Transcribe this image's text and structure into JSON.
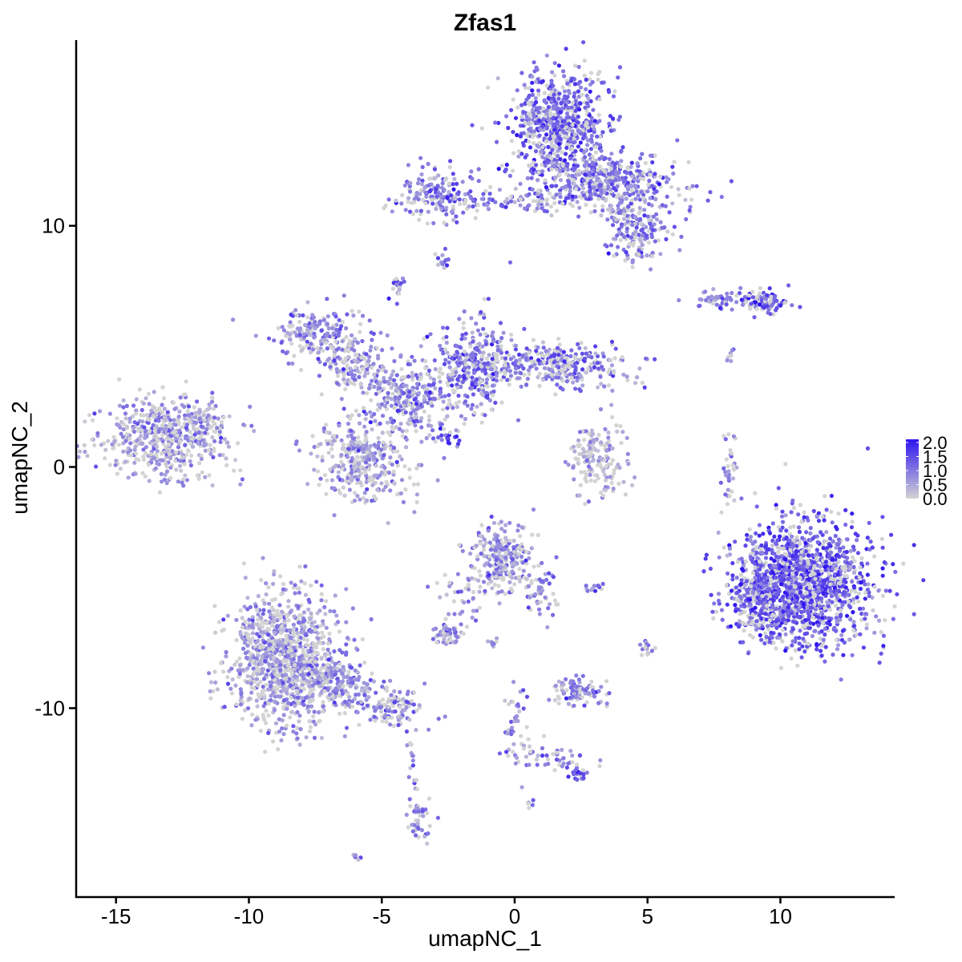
{
  "chart_data": {
    "type": "scatter",
    "title": "Zfas1",
    "xlabel": "umapNC_1",
    "ylabel": "umapNC_2",
    "xlim": [
      -16.5,
      14.3
    ],
    "ylim": [
      -17.8,
      17.7
    ],
    "x_ticks": [
      -15,
      -10,
      -5,
      0,
      5,
      10
    ],
    "x_tick_labels": [
      "-15",
      "-10",
      "-5",
      "0",
      "5",
      "10"
    ],
    "y_ticks": [
      -10,
      0,
      10
    ],
    "y_tick_labels": [
      "-10",
      "0",
      "10"
    ],
    "grid": false,
    "legend_placement": "right",
    "color_scale": {
      "low_color": "#d3d3d3",
      "high_color": "#2e14f0",
      "min": 0.0,
      "max": 2.0,
      "ticks": [
        0.0,
        0.5,
        1.0,
        1.5,
        2.0
      ],
      "tick_labels": [
        "0.0",
        "0.5",
        "1.0",
        "1.5",
        "2.0"
      ]
    },
    "clusters": [
      {
        "cx": 1.7,
        "cy": 14.2,
        "sx": 0.9,
        "sy": 1.2,
        "n": 650,
        "mean": 1.15
      },
      {
        "cx": 3.5,
        "cy": 11.8,
        "sx": 1.3,
        "sy": 0.6,
        "n": 420,
        "mean": 1.05
      },
      {
        "cx": 4.6,
        "cy": 9.8,
        "sx": 0.6,
        "sy": 0.7,
        "n": 170,
        "mean": 0.9
      },
      {
        "cx": -3.0,
        "cy": 11.3,
        "sx": 0.7,
        "sy": 0.5,
        "n": 160,
        "mean": 0.95
      },
      {
        "cx": -0.5,
        "cy": 11.0,
        "sx": 1.4,
        "sy": 0.25,
        "n": 90,
        "mean": 0.9
      },
      {
        "cx": -2.7,
        "cy": 8.6,
        "sx": 0.2,
        "sy": 0.2,
        "n": 12,
        "mean": 0.8
      },
      {
        "cx": -13.1,
        "cy": 1.2,
        "sx": 1.2,
        "sy": 0.85,
        "n": 520,
        "mean": 0.6
      },
      {
        "cx": -11.8,
        "cy": 2.1,
        "sx": 0.4,
        "sy": 0.35,
        "n": 40,
        "mean": 0.55
      },
      {
        "cx": -7.3,
        "cy": 5.4,
        "sx": 0.9,
        "sy": 0.6,
        "n": 200,
        "mean": 0.75
      },
      {
        "cx": -6.0,
        "cy": 4.0,
        "sx": 0.6,
        "sy": 0.5,
        "n": 120,
        "mean": 0.7
      },
      {
        "cx": -5.7,
        "cy": 0.3,
        "sx": 0.85,
        "sy": 0.85,
        "n": 330,
        "mean": 0.65
      },
      {
        "cx": -4.0,
        "cy": 2.8,
        "sx": 0.8,
        "sy": 0.7,
        "n": 260,
        "mean": 0.8
      },
      {
        "cx": -1.6,
        "cy": 4.2,
        "sx": 0.75,
        "sy": 1.0,
        "n": 330,
        "mean": 1.0
      },
      {
        "cx": 1.8,
        "cy": 4.2,
        "sx": 1.3,
        "sy": 0.45,
        "n": 300,
        "mean": 0.95
      },
      {
        "cx": -4.4,
        "cy": 7.4,
        "sx": 0.15,
        "sy": 0.3,
        "n": 20,
        "mean": 1.1
      },
      {
        "cx": -2.5,
        "cy": 1.3,
        "sx": 0.25,
        "sy": 0.25,
        "n": 25,
        "mean": 1.3
      },
      {
        "cx": 3.1,
        "cy": 0.3,
        "sx": 0.55,
        "sy": 0.8,
        "n": 160,
        "mean": 0.35
      },
      {
        "cx": 7.8,
        "cy": 6.9,
        "sx": 0.6,
        "sy": 0.2,
        "n": 50,
        "mean": 0.9
      },
      {
        "cx": 9.4,
        "cy": 6.8,
        "sx": 0.45,
        "sy": 0.25,
        "n": 90,
        "mean": 1.2
      },
      {
        "cx": 8.1,
        "cy": 4.6,
        "sx": 0.1,
        "sy": 0.15,
        "n": 8,
        "mean": 0.8
      },
      {
        "cx": 8.1,
        "cy": -0.3,
        "sx": 0.15,
        "sy": 0.8,
        "n": 35,
        "mean": 0.8
      },
      {
        "cx": 10.9,
        "cy": -4.8,
        "sx": 1.25,
        "sy": 1.3,
        "n": 1300,
        "mean": 1.3
      },
      {
        "cx": 9.3,
        "cy": -5.6,
        "sx": 0.6,
        "sy": 0.9,
        "n": 260,
        "mean": 1.2
      },
      {
        "cx": -0.4,
        "cy": -3.8,
        "sx": 0.55,
        "sy": 0.7,
        "n": 260,
        "mean": 0.8
      },
      {
        "cx": 0.9,
        "cy": -5.1,
        "sx": 0.3,
        "sy": 0.5,
        "n": 40,
        "mean": 0.9
      },
      {
        "cx": -1.8,
        "cy": -5.5,
        "sx": 0.5,
        "sy": 0.6,
        "n": 40,
        "mean": 0.75
      },
      {
        "cx": -2.5,
        "cy": -6.9,
        "sx": 0.3,
        "sy": 0.25,
        "n": 45,
        "mean": 0.7
      },
      {
        "cx": -8.7,
        "cy": -8.0,
        "sx": 1.0,
        "sy": 1.4,
        "n": 1000,
        "mean": 0.6
      },
      {
        "cx": -6.7,
        "cy": -9.0,
        "sx": 0.8,
        "sy": 0.5,
        "n": 200,
        "mean": 0.7
      },
      {
        "cx": -4.6,
        "cy": -10.0,
        "sx": 0.6,
        "sy": 0.35,
        "n": 110,
        "mean": 0.85
      },
      {
        "cx": -3.6,
        "cy": -14.6,
        "sx": 0.2,
        "sy": 0.6,
        "n": 45,
        "mean": 0.9
      },
      {
        "cx": -3.9,
        "cy": -12.2,
        "sx": 0.15,
        "sy": 0.7,
        "n": 15,
        "mean": 0.6
      },
      {
        "cx": 2.4,
        "cy": -9.3,
        "sx": 0.45,
        "sy": 0.3,
        "n": 100,
        "mean": 1.0
      },
      {
        "cx": 0.0,
        "cy": -10.5,
        "sx": 0.25,
        "sy": 0.9,
        "n": 45,
        "mean": 0.9
      },
      {
        "cx": 1.5,
        "cy": -12.1,
        "sx": 0.7,
        "sy": 0.25,
        "n": 45,
        "mean": 0.9
      },
      {
        "cx": 2.4,
        "cy": -12.7,
        "sx": 0.2,
        "sy": 0.15,
        "n": 20,
        "mean": 1.3
      },
      {
        "cx": 3.0,
        "cy": -5.0,
        "sx": 0.2,
        "sy": 0.1,
        "n": 12,
        "mean": 0.9
      },
      {
        "cx": 5.0,
        "cy": -7.5,
        "sx": 0.15,
        "sy": 0.2,
        "n": 14,
        "mean": 0.8
      },
      {
        "cx": -0.8,
        "cy": -7.3,
        "sx": 0.15,
        "sy": 0.1,
        "n": 8,
        "mean": 0.8
      },
      {
        "cx": 0.6,
        "cy": -14.0,
        "sx": 0.08,
        "sy": 0.08,
        "n": 5,
        "mean": 0.9
      },
      {
        "cx": -5.9,
        "cy": -16.2,
        "sx": 0.1,
        "sy": 0.08,
        "n": 6,
        "mean": 0.9
      },
      {
        "cx": -10.6,
        "cy": 6.1,
        "sx": 0.05,
        "sy": 0.05,
        "n": 2,
        "mean": 0.2
      }
    ]
  }
}
